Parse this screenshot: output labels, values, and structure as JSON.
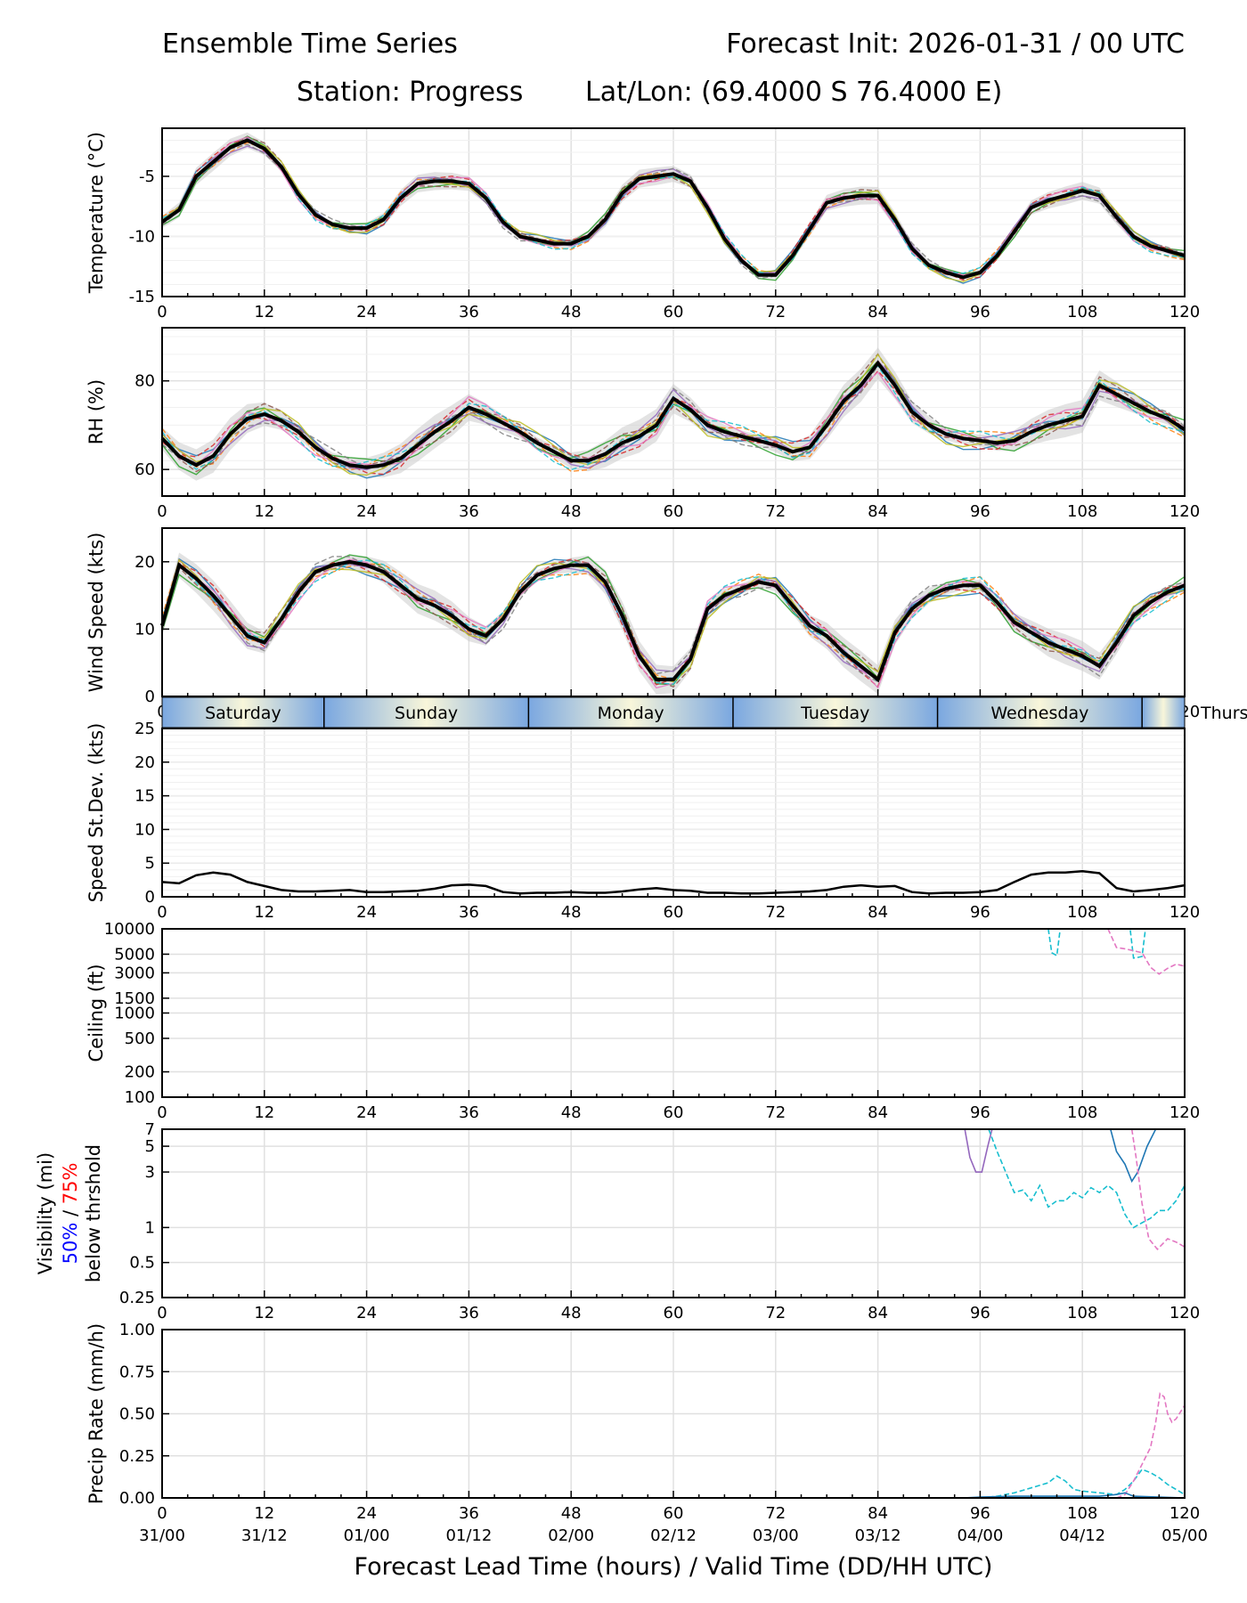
{
  "header": {
    "title": "Ensemble Time Series",
    "init": "Forecast Init: 2026-01-31 / 00 UTC",
    "station": "Station: Progress",
    "latlon": "Lat/Lon: (69.4000 S 76.4000 E)"
  },
  "colors": {
    "mean": "#000000",
    "spread": "#c8c8c8",
    "members": [
      "#1f77b4",
      "#ff7f0e",
      "#2ca02c",
      "#d62728",
      "#9467bd",
      "#8c564b",
      "#e377c2",
      "#7f7f7f",
      "#bcbd22",
      "#17becf"
    ],
    "day_blue": "#7aa7e0",
    "day_cream": "#f8f6da",
    "grid": "#e0e0e0",
    "vis50": "#0000ff",
    "vis75": "#ff0000"
  },
  "day_band": {
    "labels": [
      "Saturday",
      "Sunday",
      "Monday",
      "Tuesday",
      "Wednesday",
      "Thurs"
    ]
  },
  "chart_data": [
    {
      "type": "line",
      "name": "temperature",
      "ylabel": "Temperature (°C)",
      "ylim": [
        -15,
        -1
      ],
      "yticks": [
        -15,
        -10,
        -5
      ],
      "x": [
        0,
        2,
        4,
        6,
        8,
        10,
        12,
        14,
        16,
        18,
        20,
        22,
        24,
        26,
        28,
        30,
        32,
        34,
        36,
        38,
        40,
        42,
        44,
        46,
        48,
        50,
        52,
        54,
        56,
        58,
        60,
        62,
        64,
        66,
        68,
        70,
        72,
        74,
        76,
        78,
        80,
        82,
        84,
        86,
        88,
        90,
        92,
        94,
        96,
        98,
        100,
        102,
        104,
        106,
        108,
        110,
        112,
        114,
        116,
        118,
        120
      ],
      "series": [
        {
          "name": "ensemble mean",
          "values": [
            -8.8,
            -7.8,
            -5.0,
            -3.8,
            -2.6,
            -2.0,
            -2.7,
            -4.2,
            -6.5,
            -8.2,
            -9.0,
            -9.3,
            -9.3,
            -8.6,
            -6.8,
            -5.6,
            -5.4,
            -5.4,
            -5.6,
            -6.8,
            -8.8,
            -10.0,
            -10.3,
            -10.6,
            -10.6,
            -10.0,
            -8.6,
            -6.4,
            -5.2,
            -5.0,
            -4.8,
            -5.4,
            -7.6,
            -10.2,
            -12.0,
            -13.2,
            -13.2,
            -11.6,
            -9.4,
            -7.2,
            -6.8,
            -6.6,
            -6.6,
            -8.6,
            -11.0,
            -12.4,
            -13.0,
            -13.4,
            -13.0,
            -11.6,
            -9.6,
            -7.6,
            -7.0,
            -6.6,
            -6.2,
            -6.6,
            -8.4,
            -10.0,
            -10.8,
            -11.2,
            -11.6
          ]
        }
      ],
      "spread": 0.5
    },
    {
      "type": "line",
      "name": "relative_humidity",
      "ylabel": "RH (%)",
      "ylim": [
        54,
        92
      ],
      "yticks": [
        60,
        80
      ],
      "x": [
        0,
        2,
        4,
        6,
        8,
        10,
        12,
        14,
        16,
        18,
        20,
        22,
        24,
        26,
        28,
        30,
        32,
        34,
        36,
        38,
        40,
        42,
        44,
        46,
        48,
        50,
        52,
        54,
        56,
        58,
        60,
        62,
        64,
        66,
        68,
        70,
        72,
        74,
        76,
        78,
        80,
        82,
        84,
        86,
        88,
        90,
        92,
        94,
        96,
        98,
        100,
        102,
        104,
        106,
        108,
        110,
        112,
        114,
        116,
        118,
        120
      ],
      "series": [
        {
          "name": "ensemble mean",
          "values": [
            67,
            63,
            61,
            63,
            68,
            71.5,
            72.5,
            71,
            68.5,
            65,
            62.5,
            61,
            60.5,
            61,
            62.5,
            65.5,
            68.5,
            71,
            74,
            72.5,
            70.5,
            68.5,
            66,
            64,
            62,
            62,
            63.5,
            66,
            67.5,
            70,
            76,
            73.5,
            70,
            68.5,
            67.5,
            66.5,
            65.5,
            64,
            65,
            70,
            75.5,
            79,
            84,
            79,
            73,
            70,
            68,
            67,
            66.5,
            66,
            66.5,
            68.5,
            70,
            71,
            72,
            79,
            77,
            75,
            73,
            71.5,
            69
          ]
        }
      ],
      "spread": 2.5
    },
    {
      "type": "line",
      "name": "wind_speed",
      "ylabel": "Wind Speed (kts)",
      "ylim": [
        0,
        25
      ],
      "yticks": [
        0,
        10,
        20
      ],
      "x": [
        0,
        2,
        4,
        6,
        8,
        10,
        12,
        14,
        16,
        18,
        20,
        22,
        24,
        26,
        28,
        30,
        32,
        34,
        36,
        38,
        40,
        42,
        44,
        46,
        48,
        50,
        52,
        54,
        56,
        58,
        60,
        62,
        64,
        66,
        68,
        70,
        72,
        74,
        76,
        78,
        80,
        82,
        84,
        86,
        88,
        90,
        92,
        94,
        96,
        98,
        100,
        102,
        104,
        106,
        108,
        110,
        112,
        114,
        116,
        118,
        120
      ],
      "series": [
        {
          "name": "ensemble mean",
          "values": [
            10.5,
            19.5,
            17.5,
            15,
            12,
            9,
            8,
            11.5,
            15.5,
            18.5,
            19.5,
            20,
            19.5,
            18.5,
            16.5,
            14.5,
            13.5,
            12,
            10,
            9,
            11.5,
            15.5,
            18,
            19,
            19.5,
            19.5,
            17,
            12,
            6,
            2.5,
            2.5,
            5.5,
            13,
            15,
            16,
            17,
            16.5,
            13.5,
            10.5,
            9,
            6.5,
            4.5,
            2.5,
            9.5,
            13,
            15,
            16,
            16.5,
            16.5,
            14,
            11,
            9.5,
            8,
            7,
            6,
            4.5,
            8,
            12,
            14,
            15.5,
            16.5
          ]
        }
      ],
      "spread": 1.5
    },
    {
      "type": "line",
      "name": "speed_stdev",
      "ylabel": "Speed St.Dev. (kts)",
      "ylim": [
        0,
        25
      ],
      "yticks": [
        0,
        5,
        10,
        15,
        20,
        25
      ],
      "x": [
        0,
        2,
        4,
        6,
        8,
        10,
        12,
        14,
        16,
        18,
        20,
        22,
        24,
        26,
        28,
        30,
        32,
        34,
        36,
        38,
        40,
        42,
        44,
        46,
        48,
        50,
        52,
        54,
        56,
        58,
        60,
        62,
        64,
        66,
        68,
        70,
        72,
        74,
        76,
        78,
        80,
        82,
        84,
        86,
        88,
        90,
        92,
        94,
        96,
        98,
        100,
        102,
        104,
        106,
        108,
        110,
        112,
        114,
        116,
        118,
        120
      ],
      "series": [
        {
          "name": "std dev",
          "values": [
            2.2,
            2.0,
            3.2,
            3.6,
            3.3,
            2.2,
            1.6,
            1.0,
            0.8,
            0.8,
            0.9,
            1.0,
            0.7,
            0.7,
            0.8,
            0.9,
            1.2,
            1.7,
            1.8,
            1.6,
            0.7,
            0.5,
            0.6,
            0.6,
            0.7,
            0.6,
            0.6,
            0.8,
            1.1,
            1.3,
            1.0,
            0.9,
            0.6,
            0.6,
            0.5,
            0.5,
            0.6,
            0.7,
            0.8,
            1.0,
            1.5,
            1.7,
            1.5,
            1.6,
            0.7,
            0.5,
            0.6,
            0.6,
            0.7,
            1.0,
            2.2,
            3.3,
            3.6,
            3.6,
            3.8,
            3.5,
            1.3,
            0.8,
            1.0,
            1.3,
            1.7
          ]
        }
      ]
    },
    {
      "type": "line",
      "name": "ceiling",
      "ylabel": "Ceiling (ft)",
      "yscale": "log",
      "ylim": [
        100,
        10000
      ],
      "yticks": [
        100,
        200,
        500,
        1000,
        1500,
        3000,
        5000,
        10000
      ],
      "series": [
        {
          "name": "member 10",
          "x": [
            104,
            104.4,
            105,
            105.4,
            113.6,
            114,
            114.6,
            115,
            115.4
          ],
          "values": [
            10000,
            5200,
            4800,
            10000,
            10000,
            4500,
            4600,
            4700,
            10000
          ]
        },
        {
          "name": "member 7",
          "x": [
            111,
            112,
            113,
            115,
            116,
            117,
            118,
            119,
            120
          ],
          "values": [
            10000,
            6000,
            5800,
            5200,
            3500,
            2900,
            3400,
            3800,
            3600
          ]
        }
      ]
    },
    {
      "type": "line",
      "name": "visibility",
      "ylabel": "Visibility (mi)",
      "ylabel_sub": [
        "50%",
        " / ",
        "75%"
      ],
      "ylabel_sub2": "below thrshold",
      "yscale": "log",
      "ylim": [
        0.25,
        7
      ],
      "yticks": [
        0.25,
        0.5,
        1,
        3,
        5,
        7
      ],
      "series": [
        {
          "name": "member 5",
          "x": [
            94.2,
            94.8,
            95.5,
            96.2,
            96.9,
            97.4
          ],
          "values": [
            7,
            4,
            3,
            3,
            5,
            7
          ]
        },
        {
          "name": "member 10",
          "x": [
            97,
            98,
            99,
            100,
            101,
            102,
            103,
            104,
            105,
            106,
            107,
            108,
            109,
            110,
            111,
            112,
            113,
            114,
            115,
            116,
            117,
            118,
            119,
            120
          ],
          "values": [
            7,
            4.5,
            3,
            2,
            2.1,
            1.7,
            2.3,
            1.5,
            1.7,
            1.7,
            2.0,
            1.8,
            2.2,
            2.0,
            2.3,
            2.0,
            1.3,
            1.0,
            1.1,
            1.2,
            1.4,
            1.4,
            1.7,
            2.3
          ]
        },
        {
          "name": "member 1",
          "x": [
            111.3,
            112,
            113,
            113.8,
            114.5,
            115.6,
            116.6
          ],
          "values": [
            7,
            4.5,
            3.5,
            2.5,
            3.0,
            5,
            7
          ]
        },
        {
          "name": "member 7",
          "x": [
            113.8,
            114.3,
            115,
            115.8,
            116.8,
            118,
            119,
            120
          ],
          "values": [
            7,
            4,
            1.6,
            0.8,
            0.65,
            0.8,
            0.75,
            0.68
          ]
        }
      ]
    },
    {
      "type": "line",
      "name": "precip_rate",
      "ylabel": "Precip Rate (mm/h)",
      "ylim": [
        0,
        1
      ],
      "yticks": [
        0.0,
        0.25,
        0.5,
        0.75,
        1.0
      ],
      "series": [
        {
          "name": "member 10",
          "x": [
            96,
            98,
            100,
            102,
            104,
            105,
            106,
            107,
            108,
            110,
            112,
            113,
            114,
            115,
            116,
            117,
            118,
            120
          ],
          "values": [
            0,
            0.01,
            0.03,
            0.06,
            0.09,
            0.13,
            0.1,
            0.05,
            0.04,
            0.03,
            0.02,
            0.05,
            0.1,
            0.17,
            0.15,
            0.12,
            0.08,
            0.02
          ]
        },
        {
          "name": "member 7",
          "x": [
            112,
            113,
            114,
            115,
            116,
            116.6,
            117.1,
            117.6,
            118,
            118.5,
            119,
            120
          ],
          "values": [
            0,
            0.02,
            0.1,
            0.2,
            0.3,
            0.45,
            0.62,
            0.6,
            0.5,
            0.45,
            0.47,
            0.55
          ]
        },
        {
          "name": "member 1",
          "x": [
            94,
            96,
            100,
            104,
            110,
            112,
            113,
            114,
            120
          ],
          "values": [
            0,
            0.005,
            0.01,
            0.01,
            0.01,
            0.02,
            0.03,
            0.01,
            0.0
          ]
        }
      ]
    }
  ],
  "x_axis": {
    "lead_ticks": [
      "0",
      "12",
      "24",
      "36",
      "48",
      "60",
      "72",
      "84",
      "96",
      "108",
      "120"
    ],
    "valid_ticks": [
      "31/00",
      "31/12",
      "01/00",
      "01/12",
      "02/00",
      "02/12",
      "03/00",
      "03/12",
      "04/00",
      "04/12",
      "05/00"
    ],
    "label": "Forecast Lead Time (hours) / Valid Time (DD/HH UTC)"
  }
}
